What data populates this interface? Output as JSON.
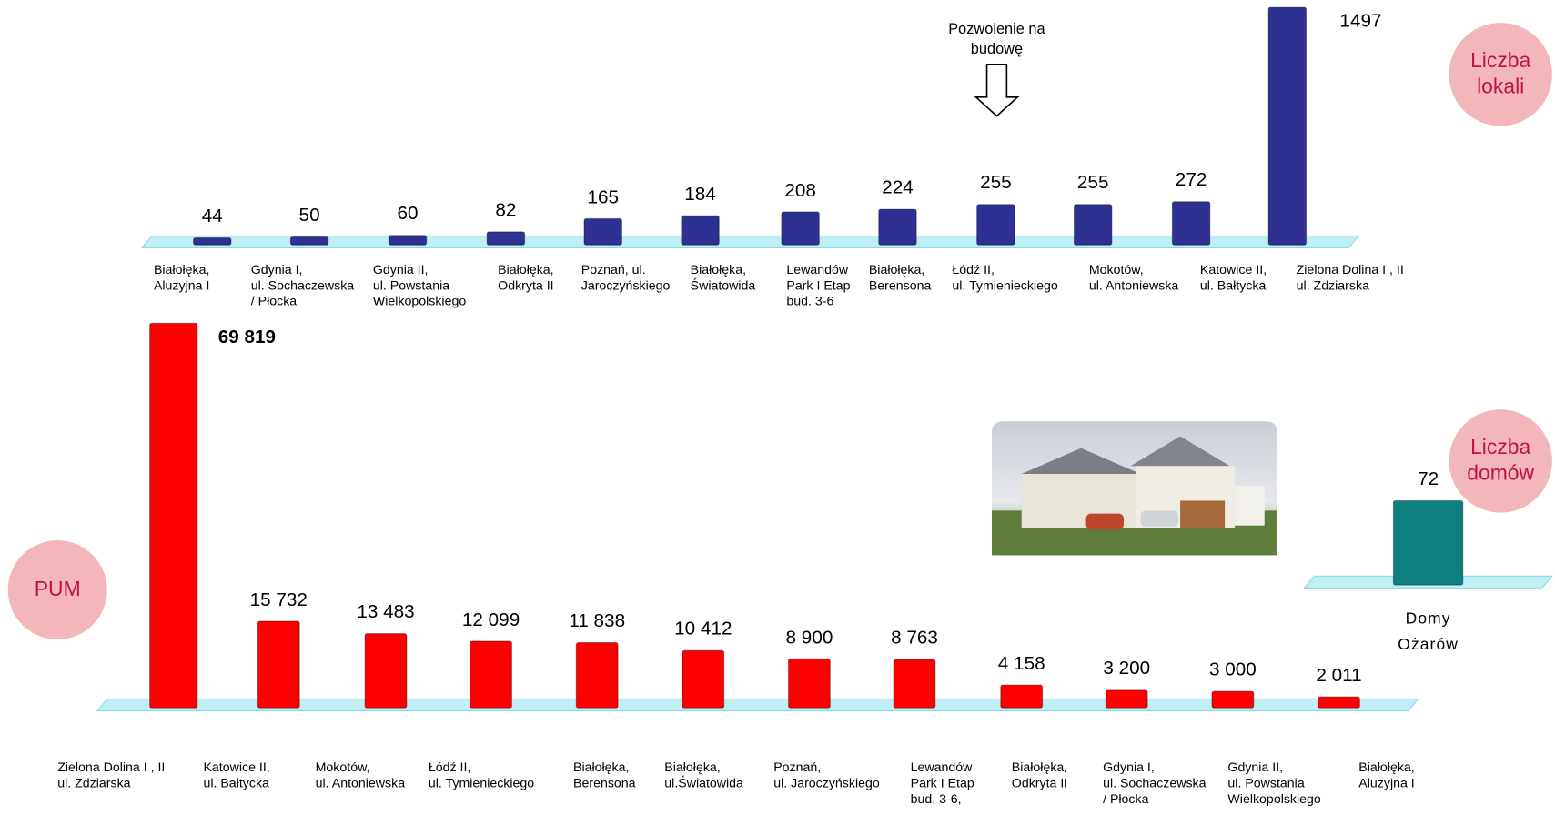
{
  "chart_data": [
    {
      "type": "bar",
      "title": "Liczba lokali",
      "annotation": "Pozwolenie na\nbudowę",
      "color": "#2e3192",
      "categories": [
        "Białołęka,\nAluzyjna I",
        "Gdynia I,\nul. Sochaczewska\n/ Płocka",
        "Gdynia II,\nul. Powstania\nWielkopolskiego",
        "Białołęka,\nOdkryta II",
        "Poznań, ul.\nJaroczyńskiego",
        "Białołęka,\nŚwiatowida",
        "Lewandów\nPark I Etap\nbud. 3-6",
        "Białołęka,\nBerensona",
        "Łódź II,\nul. Tymienieckiego",
        "Mokotów,\nul. Antoniewska",
        "Katowice II,\nul. Bałtycka",
        "Zielona Dolina I , II\nul. Zdziarska"
      ],
      "values": [
        44,
        50,
        60,
        82,
        165,
        184,
        208,
        224,
        255,
        255,
        272,
        1497
      ],
      "ylim": [
        0,
        1500
      ]
    },
    {
      "type": "bar",
      "title": "PUM",
      "color": "#ff0000",
      "categories": [
        "Zielona Dolina I , II\nul. Zdziarska",
        "Katowice II,\nul. Bałtycka",
        "Mokotów,\nul. Antoniewska",
        "Łódź II,\nul. Tymienieckiego",
        "Białołęka,\nBerensona",
        "Białołęka,\nul.Światowida",
        "Poznań,\nul. Jaroczyńskiego",
        "Lewandów\nPark I Etap\nbud. 3-6,",
        "Białołęka,\nOdkryta II",
        "Gdynia I,\nul. Sochaczewska\n/ Płocka",
        "Gdynia II,\nul. Powstania\nWielkopolskiego",
        "Białołęka,\nAluzyjna I"
      ],
      "values": [
        69819,
        15732,
        13483,
        12099,
        11838,
        10412,
        8900,
        8763,
        4158,
        3200,
        3000,
        2011
      ],
      "value_labels": [
        "69 819",
        "15 732",
        "13 483",
        "12 099",
        "11 838",
        "10 412",
        "8 900",
        "8 763",
        "4 158",
        "3 200",
        "3 000",
        "2 011"
      ],
      "ylim": [
        0,
        70000
      ]
    },
    {
      "type": "bar",
      "title": "Liczba\ndomów",
      "color": "#0f8080",
      "categories": [
        "Domy\nOżarów"
      ],
      "values": [
        72
      ],
      "ylim": [
        0,
        100
      ]
    }
  ]
}
